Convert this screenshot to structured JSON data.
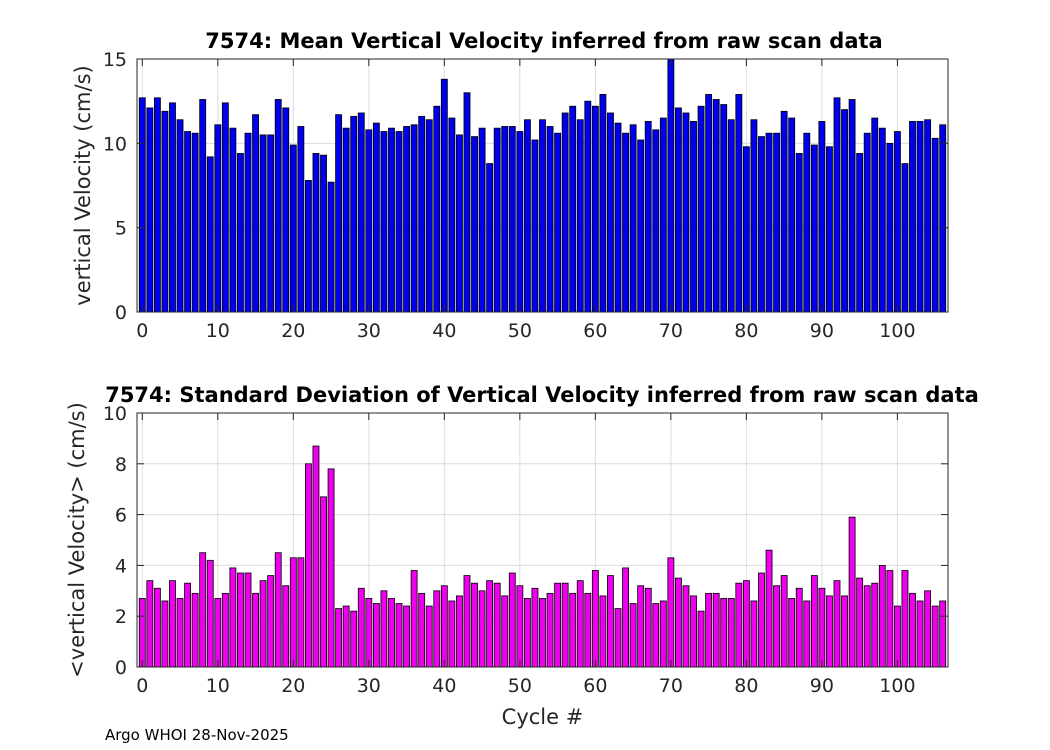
{
  "footer": "Argo WHOI 28-Nov-2025",
  "chart_data": [
    {
      "type": "bar",
      "title": "7574: Mean Vertical Velocity inferred from raw scan data",
      "xlabel": "",
      "ylabel": "vertical Velocity (cm/s)",
      "xlim": [
        -0.7,
        106.7
      ],
      "ylim": [
        0,
        15
      ],
      "xticks": [
        0,
        10,
        20,
        30,
        40,
        50,
        60,
        70,
        80,
        90,
        100
      ],
      "yticks": [
        0,
        5,
        10,
        15
      ],
      "grid": true,
      "bar_color": "#0000ee",
      "x_start": 0,
      "values": [
        12.7,
        12.1,
        12.7,
        11.9,
        12.4,
        11.4,
        10.7,
        10.6,
        12.6,
        9.2,
        11.1,
        12.4,
        10.9,
        9.4,
        10.6,
        11.7,
        10.5,
        10.5,
        12.6,
        12.1,
        9.9,
        11.0,
        7.8,
        9.4,
        9.3,
        7.7,
        11.7,
        10.9,
        11.6,
        11.8,
        10.8,
        11.2,
        10.7,
        10.9,
        10.7,
        11.0,
        11.1,
        11.6,
        11.4,
        12.2,
        13.8,
        11.5,
        10.5,
        13.0,
        10.4,
        10.9,
        8.8,
        10.9,
        11.0,
        11.0,
        10.7,
        11.4,
        10.2,
        11.4,
        11.0,
        10.6,
        11.8,
        12.2,
        11.4,
        12.5,
        12.2,
        12.9,
        11.8,
        11.2,
        10.6,
        11.1,
        10.2,
        11.3,
        10.8,
        11.5,
        15.1,
        12.1,
        11.8,
        11.3,
        12.2,
        12.9,
        12.6,
        12.3,
        11.4,
        12.9,
        9.8,
        11.4,
        10.4,
        10.6,
        10.6,
        11.9,
        11.5,
        9.4,
        10.6,
        9.9,
        11.3,
        9.8,
        12.7,
        12.0,
        12.6,
        9.4,
        10.6,
        11.5,
        10.9,
        10.0,
        10.7,
        8.8,
        11.3,
        11.3,
        11.4,
        10.3,
        11.1
      ]
    },
    {
      "type": "bar",
      "title": "7574: Standard Deviation of Vertical Velocity inferred from raw scan data",
      "xlabel": "Cycle #",
      "ylabel": "<vertical Velocity> (cm/s)",
      "xlim": [
        -0.7,
        106.7
      ],
      "ylim": [
        0,
        10
      ],
      "xticks": [
        0,
        10,
        20,
        30,
        40,
        50,
        60,
        70,
        80,
        90,
        100
      ],
      "yticks": [
        0,
        2,
        4,
        6,
        8,
        10
      ],
      "grid": true,
      "bar_color": "#ee00ee",
      "x_start": 0,
      "values": [
        2.7,
        3.4,
        3.1,
        2.6,
        3.4,
        2.7,
        3.3,
        2.9,
        4.5,
        4.2,
        2.7,
        2.9,
        3.9,
        3.7,
        3.7,
        2.9,
        3.4,
        3.6,
        4.5,
        3.2,
        4.3,
        4.3,
        8.0,
        8.7,
        6.7,
        7.8,
        2.3,
        2.4,
        2.2,
        3.1,
        2.7,
        2.5,
        3.0,
        2.7,
        2.5,
        2.4,
        3.8,
        2.9,
        2.4,
        3.0,
        3.2,
        2.6,
        2.8,
        3.6,
        3.3,
        3.0,
        3.4,
        3.3,
        2.8,
        3.7,
        3.2,
        2.7,
        3.1,
        2.7,
        2.9,
        3.3,
        3.3,
        2.9,
        3.4,
        2.9,
        3.8,
        2.8,
        3.6,
        2.3,
        3.9,
        2.5,
        3.2,
        3.1,
        2.5,
        2.6,
        4.3,
        3.5,
        3.2,
        2.8,
        2.2,
        2.9,
        2.9,
        2.7,
        2.7,
        3.3,
        3.4,
        2.6,
        3.7,
        4.6,
        3.2,
        3.6,
        2.7,
        3.1,
        2.6,
        3.6,
        3.1,
        2.8,
        3.4,
        2.8,
        5.9,
        3.5,
        3.2,
        3.3,
        4.0,
        3.8,
        2.4,
        3.8,
        2.9,
        2.6,
        3.0,
        2.4,
        2.6
      ]
    }
  ]
}
